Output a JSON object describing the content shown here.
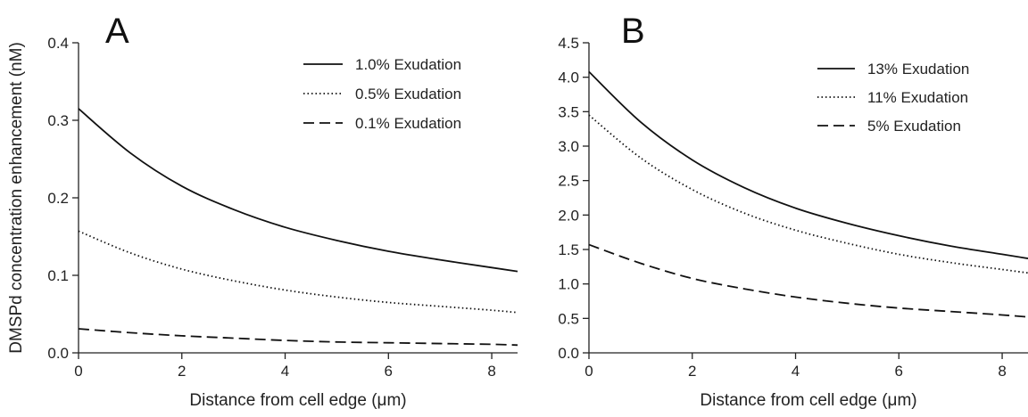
{
  "chart_data": [
    {
      "type": "line",
      "panel": "A",
      "xlabel": "Distance from cell edge (μm)",
      "ylabel": "DMSPd concentration enhancement (nM)",
      "xlim": [
        0,
        8.5
      ],
      "ylim": [
        0,
        0.4
      ],
      "xticks": [
        "0",
        "2",
        "4",
        "6",
        "8"
      ],
      "yticks": [
        "0.0",
        "0.1",
        "0.2",
        "0.3",
        "0.4"
      ],
      "legend_position": "top-right",
      "series": [
        {
          "name": "1.0% Exudation",
          "style": "solid",
          "x": [
            0,
            1,
            2,
            3,
            4,
            5,
            6,
            7,
            8,
            8.5
          ],
          "y": [
            0.315,
            0.258,
            0.215,
            0.185,
            0.162,
            0.145,
            0.131,
            0.12,
            0.11,
            0.105
          ]
        },
        {
          "name": "0.5% Exudation",
          "style": "dotted",
          "x": [
            0,
            1,
            2,
            3,
            4,
            5,
            6,
            7,
            8,
            8.5
          ],
          "y": [
            0.157,
            0.129,
            0.108,
            0.093,
            0.081,
            0.072,
            0.065,
            0.06,
            0.055,
            0.052
          ]
        },
        {
          "name": "0.1% Exudation",
          "style": "dashed",
          "x": [
            0,
            1,
            2,
            3,
            4,
            5,
            6,
            7,
            8,
            8.5
          ],
          "y": [
            0.031,
            0.026,
            0.022,
            0.019,
            0.016,
            0.014,
            0.013,
            0.012,
            0.011,
            0.01
          ]
        }
      ]
    },
    {
      "type": "line",
      "panel": "B",
      "xlabel": "Distance from cell edge (μm)",
      "ylabel": "",
      "xlim": [
        0,
        8.5
      ],
      "ylim": [
        0,
        4.5
      ],
      "xticks": [
        "0",
        "2",
        "4",
        "6",
        "8"
      ],
      "yticks": [
        "0.0",
        "0.5",
        "1.0",
        "1.5",
        "2.0",
        "2.5",
        "3.0",
        "3.5",
        "4.0",
        "4.5"
      ],
      "legend_position": "top-right",
      "series": [
        {
          "name": "13% Exudation",
          "style": "solid",
          "x": [
            0,
            1,
            2,
            3,
            4,
            5,
            6,
            7,
            8,
            8.5
          ],
          "y": [
            4.08,
            3.35,
            2.8,
            2.4,
            2.1,
            1.88,
            1.7,
            1.55,
            1.43,
            1.37
          ]
        },
        {
          "name": "11% Exudation",
          "style": "dotted",
          "x": [
            0,
            1,
            2,
            3,
            4,
            5,
            6,
            7,
            8,
            8.5
          ],
          "y": [
            3.45,
            2.83,
            2.37,
            2.03,
            1.78,
            1.59,
            1.43,
            1.31,
            1.21,
            1.16
          ]
        },
        {
          "name": "5% Exudation",
          "style": "dashed",
          "x": [
            0,
            1,
            2,
            3,
            4,
            5,
            6,
            7,
            8,
            8.5
          ],
          "y": [
            1.57,
            1.3,
            1.08,
            0.93,
            0.81,
            0.72,
            0.65,
            0.6,
            0.55,
            0.52
          ]
        }
      ]
    }
  ]
}
